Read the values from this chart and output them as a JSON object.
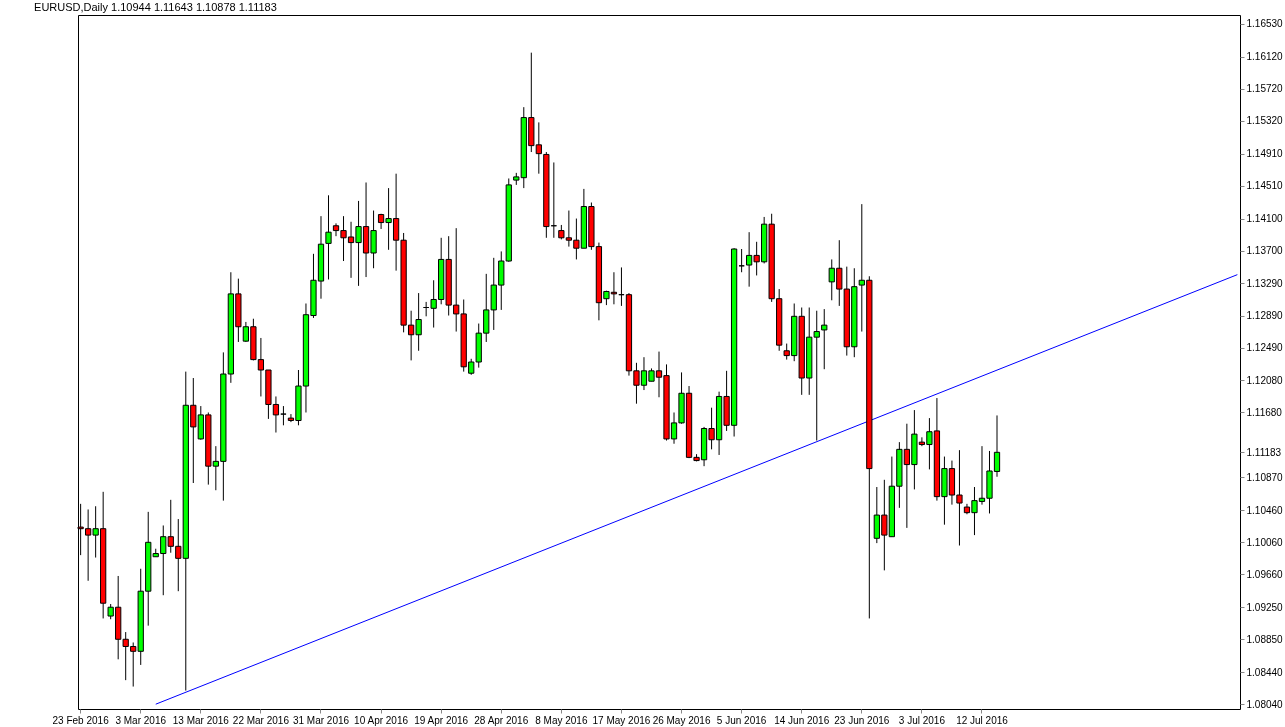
{
  "chart_data": {
    "type": "candlestick",
    "title": "EURUSD,Daily  1.10944 1.11643 1.10878 1.11183",
    "categories": [
      "23 Feb 2016",
      null,
      null,
      null,
      null,
      null,
      null,
      null,
      "3 Mar 2016",
      null,
      null,
      null,
      null,
      null,
      null,
      null,
      "13 Mar 2016",
      null,
      null,
      null,
      null,
      null,
      null,
      null,
      "22 Mar 2016",
      null,
      null,
      null,
      null,
      null,
      null,
      null,
      "31 Mar 2016",
      null,
      null,
      null,
      null,
      null,
      null,
      null,
      "10 Apr 2016",
      null,
      null,
      null,
      null,
      null,
      null,
      null,
      "19 Apr 2016",
      null,
      null,
      null,
      null,
      null,
      null,
      null,
      "28 Apr 2016",
      null,
      null,
      null,
      null,
      null,
      null,
      null,
      "8 May 2016",
      null,
      null,
      null,
      null,
      null,
      null,
      null,
      "17 May 2016",
      null,
      null,
      null,
      null,
      null,
      null,
      null,
      "26 May 2016",
      null,
      null,
      null,
      null,
      null,
      null,
      null,
      "5 Jun 2016",
      null,
      null,
      null,
      null,
      null,
      null,
      null,
      "14 Jun 2016",
      null,
      null,
      null,
      null,
      null,
      null,
      null,
      "23 Jun 2016",
      null,
      null,
      null,
      null,
      null,
      null,
      null,
      "3 Jul 2016",
      null,
      null,
      null,
      null,
      null,
      null,
      null,
      "12 Jul 2016",
      null,
      null,
      null,
      null,
      null,
      null,
      null,
      null,
      null,
      null,
      null,
      null,
      null,
      null,
      null,
      null,
      null,
      null,
      null,
      null,
      null,
      null,
      null,
      null,
      null,
      null,
      null,
      null,
      null,
      null,
      null,
      null,
      null,
      null
    ],
    "ohlc": [
      [
        1.1025,
        1.1054,
        1.099,
        1.1023
      ],
      [
        1.1023,
        1.1047,
        1.0958,
        1.1015
      ],
      [
        1.1015,
        1.1051,
        1.0987,
        1.1023
      ],
      [
        1.1023,
        1.1069,
        1.0911,
        1.093
      ],
      [
        1.0914,
        1.0929,
        1.091,
        1.0925
      ],
      [
        1.0925,
        1.0964,
        1.086,
        1.0885
      ],
      [
        1.0885,
        1.0894,
        1.0834,
        1.0876
      ],
      [
        1.0876,
        1.0881,
        1.0826,
        1.087
      ],
      [
        1.087,
        1.0973,
        1.0853,
        1.0945
      ],
      [
        1.0945,
        1.1044,
        1.0902,
        1.1006
      ],
      [
        1.0988,
        1.0998,
        1.0988,
        1.0992
      ],
      [
        1.0992,
        1.1027,
        1.094,
        1.1013
      ],
      [
        1.1013,
        1.1059,
        1.0993,
        1.1001
      ],
      [
        1.1001,
        1.1035,
        1.0945,
        1.0986
      ],
      [
        1.0986,
        1.1219,
        1.0821,
        1.1177
      ],
      [
        1.1177,
        1.1211,
        1.108,
        1.115
      ],
      [
        1.1135,
        1.1176,
        1.1134,
        1.1165
      ],
      [
        1.1165,
        1.1168,
        1.1078,
        1.1101
      ],
      [
        1.1101,
        1.1126,
        1.1071,
        1.1107
      ],
      [
        1.1107,
        1.1243,
        1.1058,
        1.1216
      ],
      [
        1.1216,
        1.1343,
        1.1205,
        1.1316
      ],
      [
        1.1316,
        1.1335,
        1.1256,
        1.1275
      ],
      [
        1.1257,
        1.1281,
        1.1256,
        1.1275
      ],
      [
        1.1275,
        1.1285,
        1.1233,
        1.1234
      ],
      [
        1.1234,
        1.1261,
        1.1188,
        1.1221
      ],
      [
        1.1221,
        1.1221,
        1.116,
        1.1178
      ],
      [
        1.1178,
        1.1188,
        1.1143,
        1.1165
      ],
      [
        1.1166,
        1.1176,
        1.1152,
        1.1166
      ],
      [
        1.1161,
        1.1166,
        1.1156,
        1.1158
      ],
      [
        1.1158,
        1.1221,
        1.1152,
        1.1201
      ],
      [
        1.1201,
        1.1304,
        1.1168,
        1.129
      ],
      [
        1.1289,
        1.1366,
        1.1286,
        1.1333
      ],
      [
        1.1332,
        1.1413,
        1.131,
        1.1378
      ],
      [
        1.1379,
        1.1439,
        1.1334,
        1.1393
      ],
      [
        1.1401,
        1.1404,
        1.1388,
        1.1395
      ],
      [
        1.1395,
        1.1413,
        1.1357,
        1.1386
      ],
      [
        1.1387,
        1.1406,
        1.1336,
        1.138
      ],
      [
        1.138,
        1.1432,
        1.1326,
        1.14
      ],
      [
        1.14,
        1.1455,
        1.1337,
        1.1367
      ],
      [
        1.1367,
        1.142,
        1.1348,
        1.1395
      ],
      [
        1.1415,
        1.1416,
        1.1397,
        1.1405
      ],
      [
        1.1405,
        1.1448,
        1.1371,
        1.141
      ],
      [
        1.141,
        1.1466,
        1.1345,
        1.1383
      ],
      [
        1.1383,
        1.1392,
        1.1268,
        1.1277
      ],
      [
        1.1277,
        1.1295,
        1.1233,
        1.1265
      ],
      [
        1.1265,
        1.1317,
        1.1245,
        1.1284
      ],
      [
        1.1299,
        1.1306,
        1.1288,
        1.1299
      ],
      [
        1.1298,
        1.1333,
        1.1274,
        1.1309
      ],
      [
        1.1309,
        1.1386,
        1.1303,
        1.1359
      ],
      [
        1.1359,
        1.1388,
        1.1289,
        1.1302
      ],
      [
        1.1302,
        1.1398,
        1.1269,
        1.1291
      ],
      [
        1.1291,
        1.1309,
        1.1219,
        1.1225
      ],
      [
        1.1217,
        1.1235,
        1.1215,
        1.1231
      ],
      [
        1.1231,
        1.1279,
        1.1224,
        1.1267
      ],
      [
        1.1267,
        1.1341,
        1.1256,
        1.1296
      ],
      [
        1.1296,
        1.1361,
        1.1271,
        1.1327
      ],
      [
        1.1327,
        1.1369,
        1.1296,
        1.1357
      ],
      [
        1.1357,
        1.146,
        1.1356,
        1.1452
      ],
      [
        1.1458,
        1.1467,
        1.1452,
        1.1462
      ],
      [
        1.1461,
        1.1549,
        1.1448,
        1.1536
      ],
      [
        1.1536,
        1.1617,
        1.1493,
        1.1501
      ],
      [
        1.1502,
        1.153,
        1.1466,
        1.1491
      ],
      [
        1.149,
        1.1493,
        1.1386,
        1.14
      ],
      [
        1.1401,
        1.148,
        1.1386,
        1.1401
      ],
      [
        1.1395,
        1.1402,
        1.1384,
        1.1386
      ],
      [
        1.1386,
        1.142,
        1.1375,
        1.1383
      ],
      [
        1.1383,
        1.141,
        1.1359,
        1.1373
      ],
      [
        1.1373,
        1.1447,
        1.1373,
        1.1425
      ],
      [
        1.1425,
        1.143,
        1.1371,
        1.1375
      ],
      [
        1.1375,
        1.138,
        1.1283,
        1.1305
      ],
      [
        1.131,
        1.132,
        1.1302,
        1.1319
      ],
      [
        1.1318,
        1.1343,
        1.1303,
        1.1316
      ],
      [
        1.1315,
        1.1349,
        1.1301,
        1.1315
      ],
      [
        1.1315,
        1.1317,
        1.1214,
        1.122
      ],
      [
        1.122,
        1.123,
        1.1179,
        1.1202
      ],
      [
        1.1202,
        1.1237,
        1.1196,
        1.122
      ],
      [
        1.1207,
        1.1223,
        1.1207,
        1.122
      ],
      [
        1.122,
        1.1244,
        1.1187,
        1.1212
      ],
      [
        1.1214,
        1.1228,
        1.1133,
        1.1135
      ],
      [
        1.1135,
        1.1168,
        1.1129,
        1.1155
      ],
      [
        1.1155,
        1.1218,
        1.1154,
        1.1192
      ],
      [
        1.1192,
        1.1201,
        1.1111,
        1.1112
      ],
      [
        1.1112,
        1.1116,
        1.1107,
        1.1108
      ],
      [
        1.1109,
        1.115,
        1.1101,
        1.1148
      ],
      [
        1.1148,
        1.1174,
        1.1122,
        1.1134
      ],
      [
        1.1134,
        1.1194,
        1.1115,
        1.1188
      ],
      [
        1.1188,
        1.122,
        1.1145,
        1.1152
      ],
      [
        1.1152,
        1.1373,
        1.1138,
        1.1372
      ],
      [
        1.1351,
        1.1372,
        1.1343,
        1.1351
      ],
      [
        1.1352,
        1.1393,
        1.1325,
        1.1364
      ],
      [
        1.1364,
        1.1381,
        1.1339,
        1.1356
      ],
      [
        1.1356,
        1.1412,
        1.1354,
        1.1403
      ],
      [
        1.1403,
        1.1416,
        1.1306,
        1.131
      ],
      [
        1.131,
        1.1322,
        1.1245,
        1.1252
      ],
      [
        1.1245,
        1.1254,
        1.1234,
        1.1239
      ],
      [
        1.1239,
        1.1304,
        1.1232,
        1.1288
      ],
      [
        1.1288,
        1.1299,
        1.119,
        1.1211
      ],
      [
        1.1211,
        1.1299,
        1.119,
        1.1262
      ],
      [
        1.1262,
        1.1295,
        1.1133,
        1.1269
      ],
      [
        1.1271,
        1.1297,
        1.1222,
        1.1277
      ],
      [
        1.1331,
        1.1359,
        1.1308,
        1.1348
      ],
      [
        1.1348,
        1.1383,
        1.1301,
        1.1322
      ],
      [
        1.1322,
        1.135,
        1.1239,
        1.125
      ],
      [
        1.125,
        1.1348,
        1.1237,
        1.1325
      ],
      [
        1.1327,
        1.1428,
        1.1269,
        1.1333
      ],
      [
        1.1333,
        1.1338,
        1.0911,
        1.1098
      ],
      [
        1.1011,
        1.1075,
        1.1005,
        1.104
      ],
      [
        1.104,
        1.1084,
        1.0971,
        1.1015
      ],
      [
        1.1013,
        1.1113,
        1.1013,
        1.1076
      ],
      [
        1.1076,
        1.1131,
        1.1049,
        1.1122
      ],
      [
        1.1122,
        1.1154,
        1.1024,
        1.1103
      ],
      [
        1.1103,
        1.1171,
        1.1072,
        1.1141
      ],
      [
        1.1131,
        1.1137,
        1.1126,
        1.1128
      ],
      [
        1.1128,
        1.1161,
        1.1097,
        1.1144
      ],
      [
        1.1145,
        1.1186,
        1.1058,
        1.1063
      ],
      [
        1.1063,
        1.1113,
        1.1028,
        1.1098
      ],
      [
        1.1098,
        1.1108,
        1.1053,
        1.1065
      ],
      [
        1.1065,
        1.1121,
        1.1002,
        1.1055
      ],
      [
        1.105,
        1.1054,
        1.1041,
        1.1043
      ],
      [
        1.1043,
        1.1075,
        1.1015,
        1.1058
      ],
      [
        1.1057,
        1.1126,
        1.1053,
        1.1061
      ],
      [
        1.1061,
        1.112,
        1.1042,
        1.1095
      ],
      [
        1.10944,
        1.11643,
        1.10878,
        1.11183
      ],
      null,
      null,
      null,
      null,
      null,
      null,
      null,
      null,
      null,
      null,
      null,
      null,
      null,
      null,
      null,
      null,
      null,
      null,
      null,
      null,
      null,
      null,
      null,
      null,
      null,
      null,
      null,
      null,
      null,
      null,
      null,
      null
    ],
    "colors": [
      "#ff0000",
      "#ff0000",
      "#00ff00",
      "#ff0000",
      "#00ff00",
      "#ff0000",
      "#ff0000",
      "#ff0000",
      "#00ff00",
      "#00ff00",
      "#00ff00",
      "#00ff00",
      "#ff0000",
      "#ff0000",
      "#00ff00",
      "#ff0000",
      "#00ff00",
      "#ff0000",
      "#00ff00",
      "#00ff00",
      "#00ff00",
      "#ff0000",
      "#00ff00",
      "#ff0000",
      "#ff0000",
      "#ff0000",
      "#ff0000",
      "#000000",
      "#ff0000",
      "#00ff00",
      "#00ff00",
      "#00ff00",
      "#00ff00",
      "#00ff00",
      "#ff0000",
      "#ff0000",
      "#ff0000",
      "#00ff00",
      "#ff0000",
      "#00ff00",
      "#ff0000",
      "#00ff00",
      "#ff0000",
      "#ff0000",
      "#ff0000",
      "#00ff00",
      "#000000",
      "#00ff00",
      "#00ff00",
      "#ff0000",
      "#ff0000",
      "#ff0000",
      "#00ff00",
      "#00ff00",
      "#00ff00",
      "#00ff00",
      "#00ff00",
      "#00ff00",
      "#00ff00",
      "#00ff00",
      "#ff0000",
      "#ff0000",
      "#ff0000",
      "#000000",
      "#ff0000",
      "#ff0000",
      "#ff0000",
      "#00ff00",
      "#ff0000",
      "#ff0000",
      "#00ff00",
      "#ff0000",
      "#000000",
      "#ff0000",
      "#ff0000",
      "#00ff00",
      "#00ff00",
      "#ff0000",
      "#ff0000",
      "#00ff00",
      "#00ff00",
      "#ff0000",
      "#ff0000",
      "#00ff00",
      "#ff0000",
      "#00ff00",
      "#ff0000",
      "#00ff00",
      "#000000",
      "#00ff00",
      "#ff0000",
      "#00ff00",
      "#ff0000",
      "#ff0000",
      "#ff0000",
      "#00ff00",
      "#ff0000",
      "#00ff00",
      "#00ff00",
      "#00ff00",
      "#00ff00",
      "#ff0000",
      "#ff0000",
      "#00ff00",
      "#00ff00",
      "#ff0000",
      "#00ff00",
      "#ff0000",
      "#00ff00",
      "#00ff00",
      "#ff0000",
      "#00ff00",
      "#ff0000",
      "#00ff00",
      "#ff0000",
      "#00ff00",
      "#ff0000",
      "#ff0000",
      "#ff0000",
      "#00ff00",
      "#00ff00",
      "#00ff00",
      "#00ff00",
      null,
      null,
      null,
      null,
      null,
      null,
      null,
      null,
      null,
      null,
      null,
      null,
      null,
      null,
      null,
      null,
      null,
      null,
      null,
      null,
      null,
      null,
      null,
      null,
      null,
      null,
      null,
      null,
      null,
      null,
      null,
      null
    ],
    "series": [
      {
        "type": "line",
        "color": "#0000ff",
        "values": [
          null,
          null,
          null,
          null,
          null,
          null,
          null,
          null,
          null,
          null,
          1.0804,
          null,
          null,
          null,
          null,
          null,
          null,
          null,
          null,
          null,
          null,
          null,
          null,
          null,
          null,
          null,
          null,
          null,
          null,
          null,
          null,
          null,
          null,
          null,
          null,
          null,
          null,
          null,
          null,
          null,
          null,
          null,
          null,
          null,
          null,
          null,
          null,
          null,
          null,
          null,
          null,
          null,
          null,
          null,
          null,
          null,
          null,
          null,
          null,
          null,
          null,
          null,
          null,
          null,
          null,
          null,
          null,
          null,
          null,
          null,
          null,
          null,
          null,
          null,
          null,
          null,
          null,
          null,
          null,
          null,
          null,
          null,
          null,
          null,
          null,
          null,
          null,
          null,
          null,
          null,
          null,
          null,
          null,
          null,
          null,
          null,
          null,
          null,
          null,
          null,
          null,
          null,
          null,
          null,
          null,
          null,
          null,
          null,
          null,
          null,
          null,
          null,
          null,
          null,
          null,
          null,
          null,
          null,
          null,
          null,
          null,
          null,
          null,
          null,
          null,
          null,
          null,
          null,
          null,
          null,
          null,
          null,
          null,
          null,
          null,
          null,
          null,
          null,
          null,
          null,
          null,
          null,
          null,
          null,
          null,
          null,
          null,
          null,
          null,
          null,
          null,
          null,
          null,
          null,
          1.134
        ]
      }
    ],
    "ylim": [
      1.0798,
      1.1664
    ],
    "yticks": [
      {
        "value": 1.1653,
        "label": "1.16530"
      },
      {
        "value": 1.1612,
        "label": "1.16120"
      },
      {
        "value": 1.1572,
        "label": "1.15720"
      },
      {
        "value": 1.1532,
        "label": "1.15320"
      },
      {
        "value": 1.1491,
        "label": "1.14910"
      },
      {
        "value": 1.1451,
        "label": "1.14510"
      },
      {
        "value": 1.141,
        "label": "1.14100"
      },
      {
        "value": 1.137,
        "label": "1.13700"
      },
      {
        "value": 1.1329,
        "label": "1.13290"
      },
      {
        "value": 1.1289,
        "label": "1.12890"
      },
      {
        "value": 1.1249,
        "label": "1.12490"
      },
      {
        "value": 1.1208,
        "label": "1.12080"
      },
      {
        "value": 1.1168,
        "label": "1.11680"
      },
      1.11183,
      {
        "value": 1.1087,
        "label": "1.10870"
      },
      {
        "value": 1.1046,
        "label": "1.10460"
      },
      {
        "value": 1.1006,
        "label": "1.10060"
      },
      {
        "value": 1.0966,
        "label": "1.09660"
      },
      {
        "value": 1.0925,
        "label": "1.09250"
      },
      {
        "value": 1.0885,
        "label": "1.08850"
      },
      {
        "value": 1.0844,
        "label": "1.08440"
      },
      {
        "value": 1.0804,
        "label": "1.08040"
      }
    ]
  }
}
